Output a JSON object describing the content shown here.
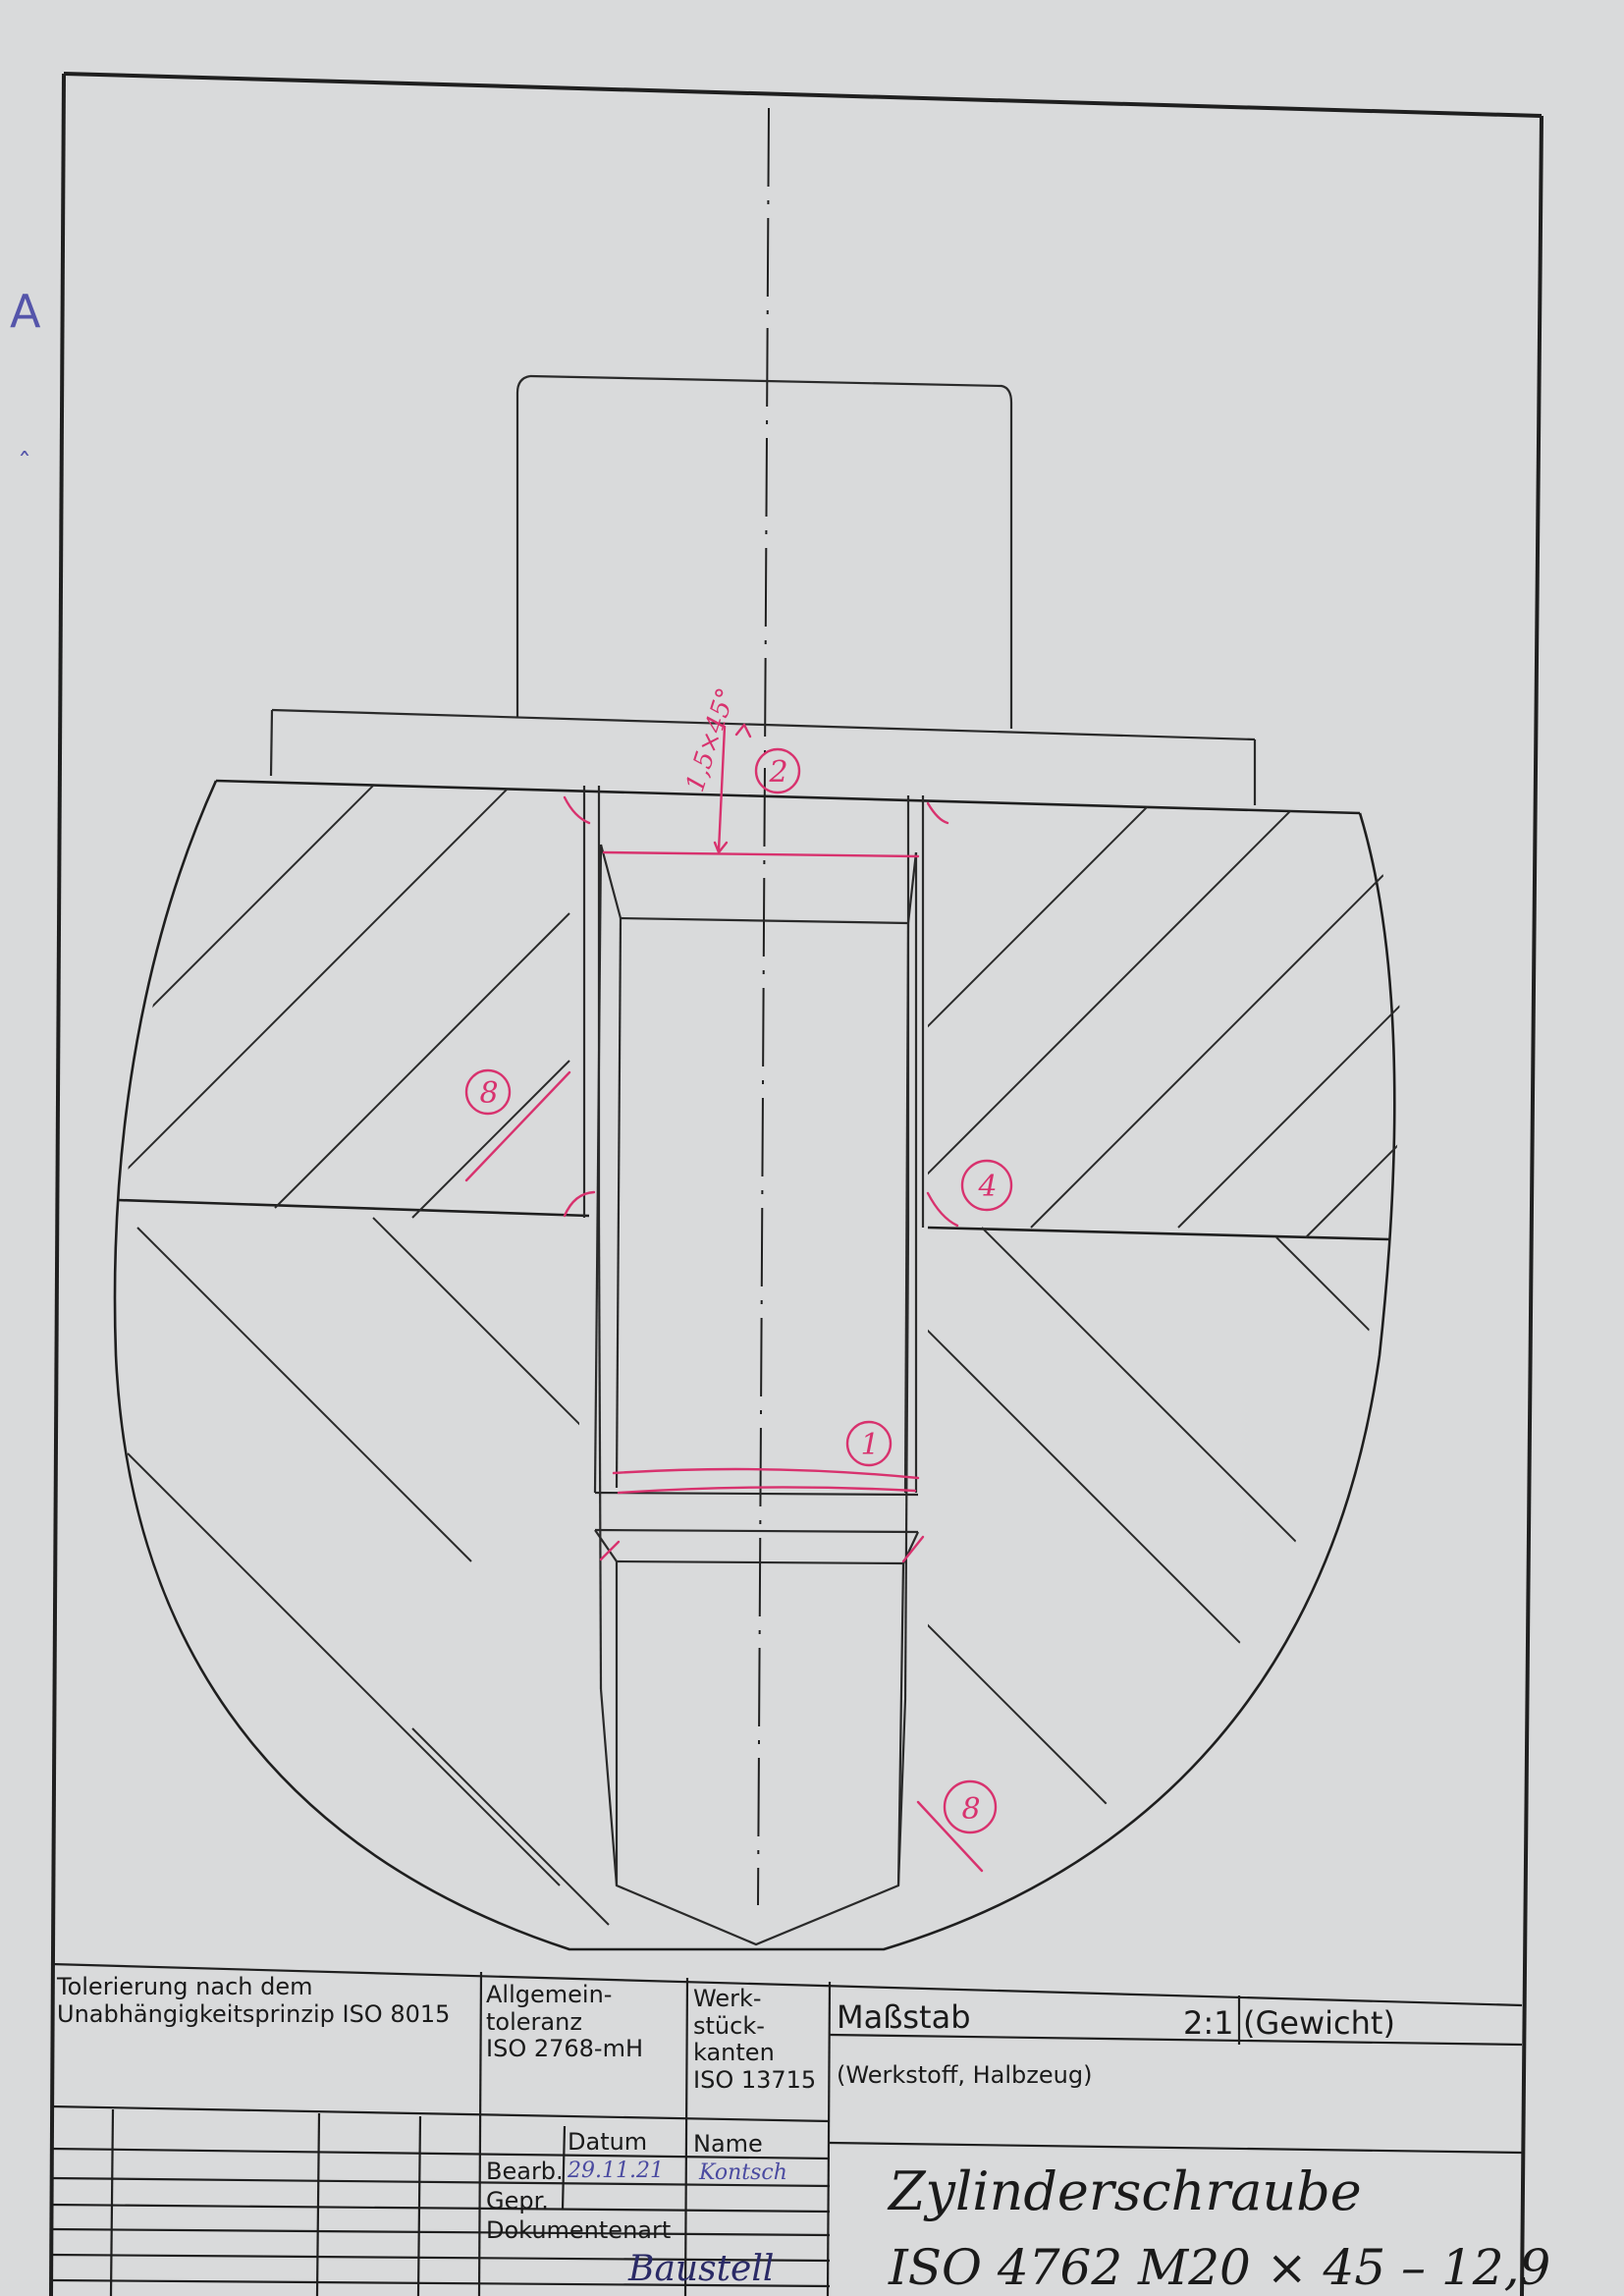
{
  "margin_marks": {
    "letter": "A",
    "small": "ˆ"
  },
  "drawing": {
    "annotation_markers": [
      "1",
      "2",
      "4",
      "8",
      "8"
    ]
  },
  "title_block": {
    "tolerancing": "Tolerierung nach dem\nUnabhängigkeitsprinzip ISO 8015",
    "general_tolerance": "Allgemein-\ntoleranz\nISO 2768-mH",
    "workpiece_edges": "Werk-\nstück-\nkanten\nISO 13715",
    "scale_label": "Maßstab",
    "scale_value": "2:1",
    "weight_label": "(Gewicht)",
    "material_label": "(Werkstoff, Halbzeug)",
    "date_header": "Datum",
    "name_header": "Name",
    "row_bearb": "Bearb.",
    "row_gepr": "Gepr.",
    "bearb_date": "29.11.21",
    "bearb_name": "Kontsch",
    "doc_type_label": "Dokumentenart",
    "doc_type_value": "Baustell",
    "title_handwritten": "Zylinderschraube",
    "designation_handwritten": "ISO 4762 M20 × 45 – 12,9"
  },
  "colors": {
    "ink": "#1f1f1f",
    "pink": "#d8326e",
    "paper": "#d9dadb"
  }
}
